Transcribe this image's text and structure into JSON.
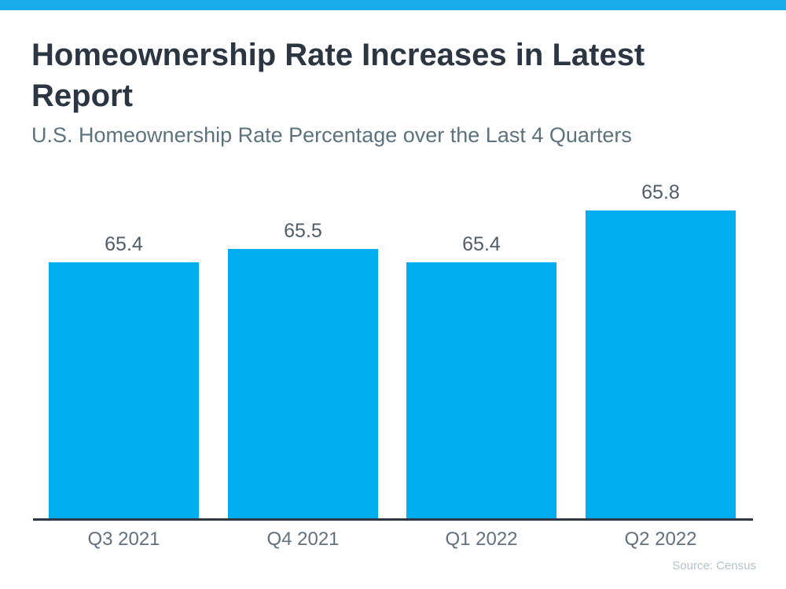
{
  "header": {
    "title": "Homeownership Rate Increases in Latest Report",
    "subtitle": "U.S. Homeownership Rate Percentage over the Last 4 Quarters"
  },
  "footer": {
    "source": "Source: Census"
  },
  "colors": {
    "accent_bar": "#1AABEB",
    "bar_fill": "#00AEEF",
    "title": "#2B3642",
    "subtitle": "#5C737E",
    "value_label": "#4F5D6B",
    "axis_label": "#61707F",
    "axis_line": "#2F3945",
    "source": "#B6C1CB"
  },
  "chart_data": {
    "type": "bar",
    "title": "Homeownership Rate Increases in Latest Report",
    "subtitle": "U.S. Homeownership Rate Percentage over the Last 4 Quarters",
    "categories": [
      "Q3 2021",
      "Q4 2021",
      "Q1 2022",
      "Q2 2022"
    ],
    "values": [
      65.4,
      65.5,
      65.4,
      65.8
    ],
    "value_labels": [
      "65.4",
      "65.5",
      "65.4",
      "65.8"
    ],
    "xlabel": "",
    "ylabel": "",
    "ylim": [
      63.4,
      66.2
    ],
    "grid": false,
    "legend": false,
    "bar_color": "#00AEEF",
    "source": "Source: Census"
  }
}
